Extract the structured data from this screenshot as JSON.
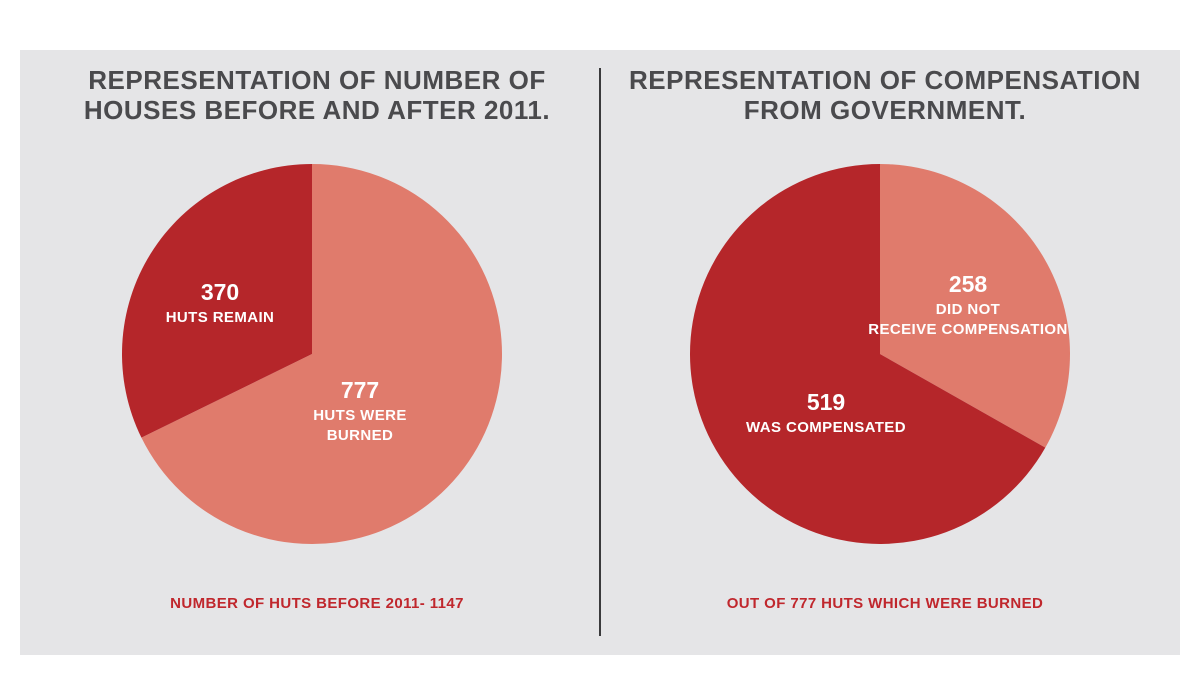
{
  "palette": {
    "background": "#e5e5e7",
    "title": "#4a4a4d",
    "dark_red": "#b5262a",
    "light_red": "#e07b6c",
    "accent_text": "#c0272d"
  },
  "chart_data": [
    {
      "type": "pie",
      "title": "REPRESENTATION OF NUMBER OF HOUSES BEFORE AND AFTER 2011.",
      "footer": "NUMBER OF HUTS BEFORE 2011- 1147",
      "slices": [
        {
          "value": 777,
          "label": "HUTS WERE BURNED",
          "display_value": "777",
          "color": "#e07b6c"
        },
        {
          "value": 370,
          "label": "HUTS REMAIN",
          "display_value": "370",
          "color": "#b5262a"
        }
      ]
    },
    {
      "type": "pie",
      "title": "REPRESENTATION OF COMPENSATION FROM GOVERNMENT.",
      "footer": "OUT OF 777 HUTS WHICH WERE BURNED",
      "slices": [
        {
          "value": 258,
          "label": "DID NOT RECEIVE COMPENSATION",
          "display_value": "258",
          "color": "#e07b6c"
        },
        {
          "value": 519,
          "label": "WAS COMPENSATED",
          "display_value": "519",
          "color": "#b5262a"
        }
      ]
    }
  ]
}
